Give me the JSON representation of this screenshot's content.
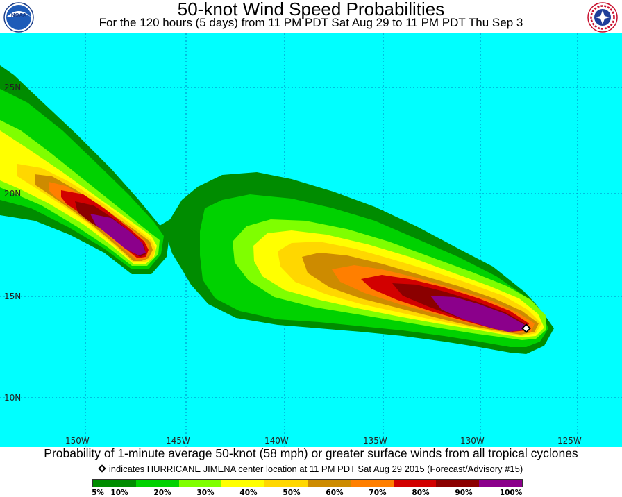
{
  "header": {
    "title": "50-knot Wind Speed Probabilities",
    "subtitle": "For the 120 hours (5 days) from 11 PM PDT Sat Aug 29 to 11 PM PDT Thu Sep 3",
    "logo_left_text": "NOAA",
    "logo_right_text": "NATIONAL WEATHER SERVICE"
  },
  "map": {
    "background_color": "#00ffff",
    "lat_labels": [
      "25N",
      "20N",
      "15N",
      "10N"
    ],
    "lon_labels": [
      "150W",
      "145W",
      "140W",
      "135W",
      "130W",
      "125W"
    ]
  },
  "footer": {
    "caption": "Probability of 1-minute average 50-knot (58 mph) or greater surface winds from all tropical cyclones",
    "note": "indicates HURRICANE JIMENA center location at 11 PM PDT Sat Aug 29 2015 (Forecast/Advisory #15)"
  },
  "legend": {
    "colors": [
      "#008c00",
      "#00d200",
      "#7fff00",
      "#ffff00",
      "#ffd700",
      "#cd8b00",
      "#ff7f00",
      "#d20000",
      "#8b0000",
      "#8b008b"
    ],
    "labels": [
      "5%",
      "10%",
      "20%",
      "30%",
      "40%",
      "50%",
      "60%",
      "70%",
      "80%",
      "90%",
      "100%"
    ]
  }
}
